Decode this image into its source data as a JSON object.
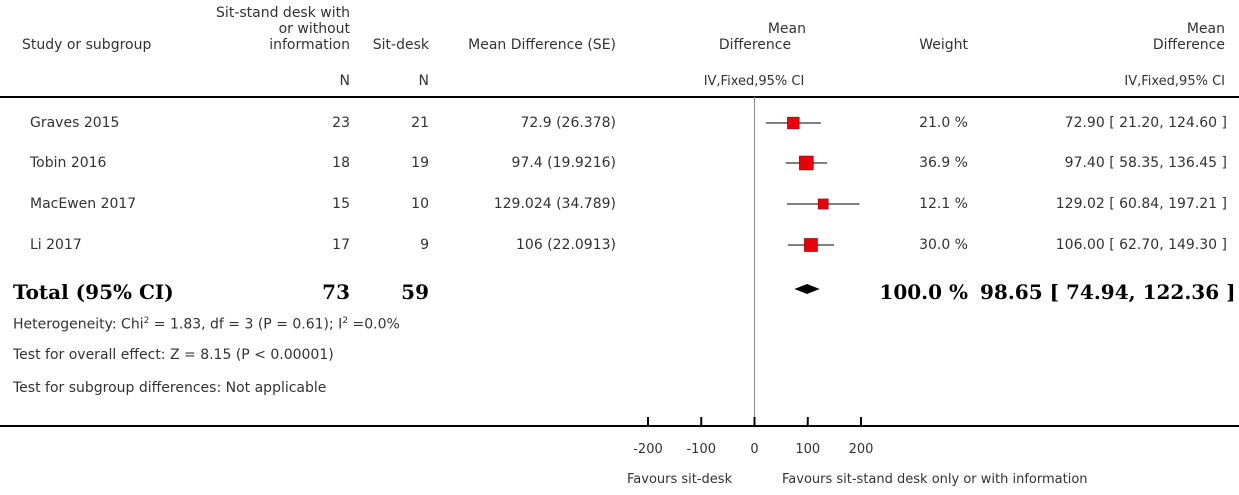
{
  "headers": {
    "study": "Study or subgroup",
    "group1_line1": "Sit-stand desk with",
    "group1_line2": "or without",
    "group1_line3": "information",
    "group1_n": "N",
    "group2": "Sit-desk",
    "group2_n": "N",
    "md_se": "Mean Difference (SE)",
    "plot_line1": "Mean",
    "plot_line2": "Difference",
    "plot_sub": "IV,Fixed,95% CI",
    "weight": "Weight",
    "md_line1": "Mean",
    "md_line2": "Difference",
    "md_sub": "IV,Fixed,95% CI"
  },
  "rows": [
    {
      "study": "Graves 2015",
      "n1": "23",
      "n2": "21",
      "md_se": "72.9 (26.378)",
      "weight": "21.0 %",
      "ci": "72.90 [ 21.20, 124.60 ]"
    },
    {
      "study": "Tobin 2016",
      "n1": "18",
      "n2": "19",
      "md_se": "97.4 (19.9216)",
      "weight": "36.9 %",
      "ci": "97.40 [ 58.35, 136.45 ]"
    },
    {
      "study": "MacEwen 2017",
      "n1": "15",
      "n2": "10",
      "md_se": "129.024 (34.789)",
      "weight": "12.1 %",
      "ci": "129.02 [ 60.84, 197.21 ]"
    },
    {
      "study": "Li 2017",
      "n1": "17",
      "n2": "9",
      "md_se": "106 (22.0913)",
      "weight": "30.0 %",
      "ci": "106.00 [ 62.70, 149.30 ]"
    }
  ],
  "total": {
    "label": "Total (95% CI)",
    "n1": "73",
    "n2": "59",
    "weight": "100.0 %",
    "ci": "98.65 [ 74.94, 122.36 ]"
  },
  "footnotes": {
    "heterogeneity_pre": "Heterogeneity: Chi",
    "heterogeneity_sup1": "2",
    "heterogeneity_mid": " = 1.83, df = 3 (P = 0.61); I",
    "heterogeneity_sup2": "2",
    "heterogeneity_post": " =0.0%",
    "overall": "Test for overall effect: Z = 8.15 (P < 0.00001)",
    "subgroup": "Test for subgroup differences: Not applicable"
  },
  "axis_labels": {
    "favours_left": "Favours sit-desk",
    "favours_right": "Favours sit-stand desk only or with information"
  },
  "chart_data": {
    "type": "forest",
    "xlim": [
      -200,
      200
    ],
    "ticks": [
      -200,
      -100,
      0,
      100,
      200
    ],
    "tick_labels": [
      "-200",
      "-100",
      "0",
      "100",
      "200"
    ],
    "studies": [
      {
        "name": "Graves 2015",
        "mean": 72.9,
        "lower": 21.2,
        "upper": 124.6,
        "weight": 21.0
      },
      {
        "name": "Tobin 2016",
        "mean": 97.4,
        "lower": 58.35,
        "upper": 136.45,
        "weight": 36.9
      },
      {
        "name": "MacEwen 2017",
        "mean": 129.02,
        "lower": 60.84,
        "upper": 197.21,
        "weight": 12.1
      },
      {
        "name": "Li 2017",
        "mean": 106.0,
        "lower": 62.7,
        "upper": 149.3,
        "weight": 30.0
      }
    ],
    "pooled": {
      "mean": 98.65,
      "lower": 74.94,
      "upper": 122.36
    },
    "colors": {
      "marker": "#e8000b",
      "diamond": "#000000",
      "line": "#000000"
    }
  }
}
